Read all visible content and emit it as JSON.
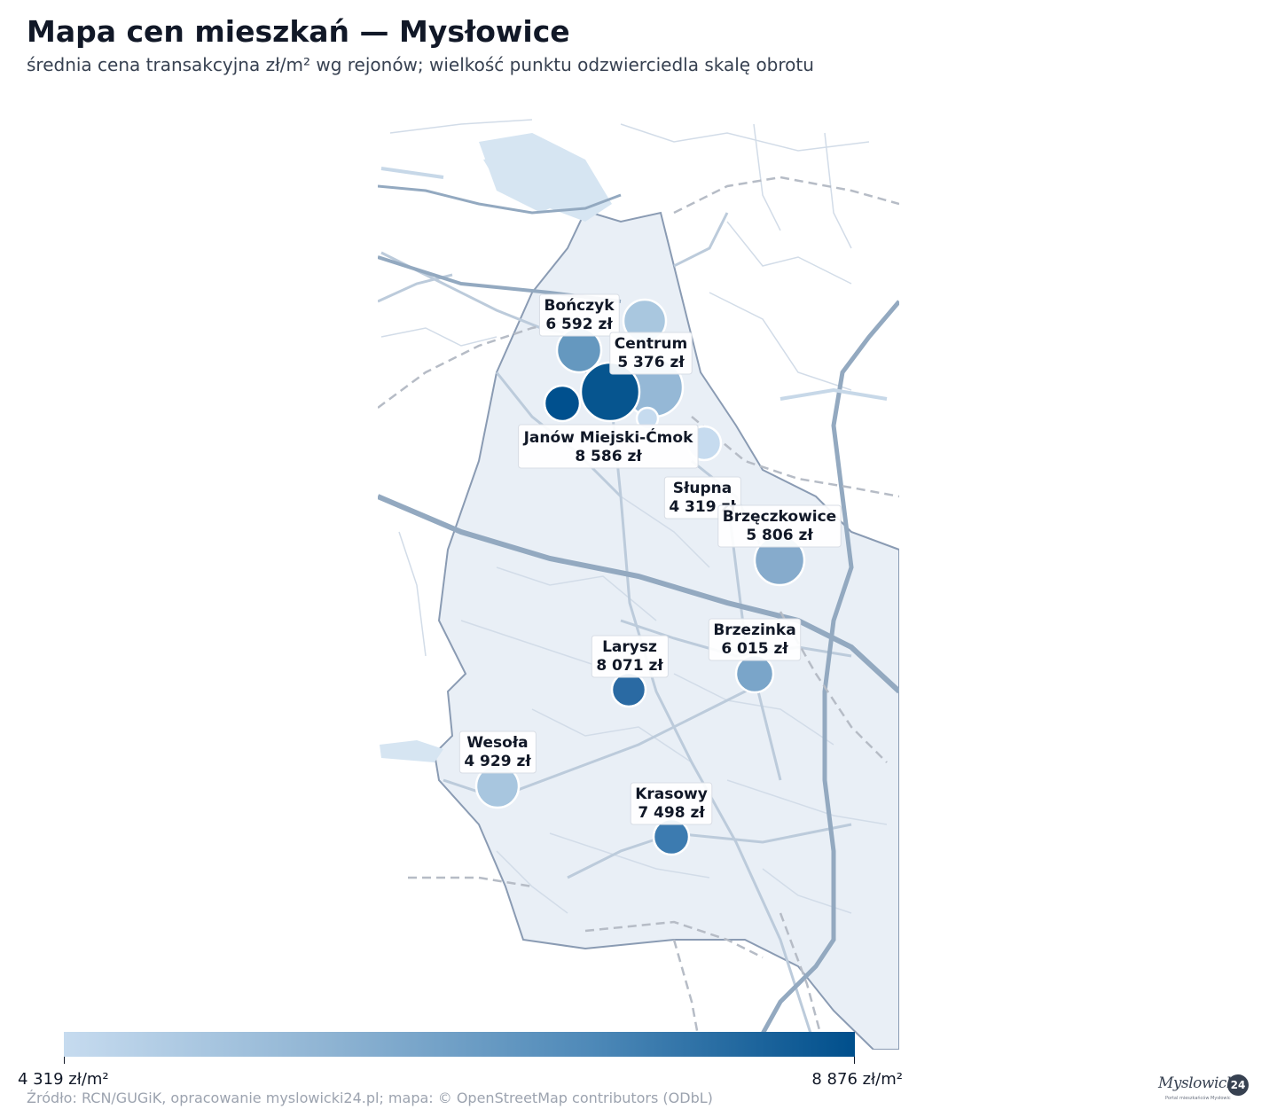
{
  "title": "Mapa cen mieszkań — Mysłowice",
  "subtitle": "średnia cena transakcyjna zł/m² wg rejonów; wielkość punktu odzwierciedla skalę obrotu",
  "districts": [
    {
      "name": "Bończyk",
      "value": "6 592 zł",
      "color": "#6598bf"
    },
    {
      "name": "Centrum",
      "value": "5 376 zł",
      "color": "#95b8d6"
    },
    {
      "name": "Janów Miejski-Ćmok",
      "value": "8 586 zł",
      "color": "#06558f"
    },
    {
      "name": "Słupna",
      "value": "4 319 zł",
      "color": "#c6dbef"
    },
    {
      "name": "Brzęczkowice",
      "value": "5 806 zł",
      "color": "#86abcc"
    },
    {
      "name": "Brzezinka",
      "value": "6 015 zł",
      "color": "#7aa5c9"
    },
    {
      "name": "Larysz",
      "value": "8 071 zł",
      "color": "#2a6aa3"
    },
    {
      "name": "Wesoła",
      "value": "4 929 zł",
      "color": "#a8c6df"
    },
    {
      "name": "Krasowy",
      "value": "7 498 zł",
      "color": "#3c7bb0"
    }
  ],
  "legend": {
    "min_label": "4 319 zł/m²",
    "max_label": "8 876 zł/m²",
    "color_low": "#c6dbef",
    "color_high": "#004f8c"
  },
  "source": "Źródło: RCN/GUGiK, opracowanie myslowicki24.pl; mapa: © OpenStreetMap contributors (ODbL)",
  "logo": {
    "text": "Myslowicki",
    "badge": "24",
    "tagline": "Portal mieszkańców Mysłowic"
  }
}
